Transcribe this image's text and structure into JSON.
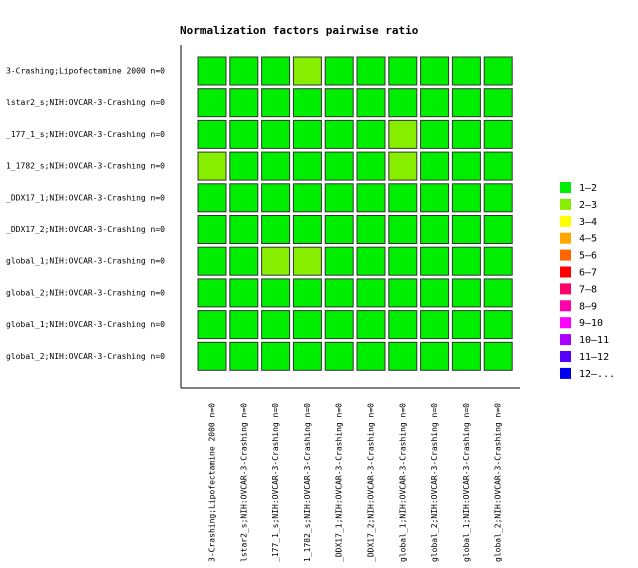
{
  "chart_data": {
    "type": "heatmap",
    "title": "Normalization factors pairwise ratio",
    "rows": [
      "3-Crashing;Lipofectamine 2000 n=0",
      "lstar2_s;NIH:OVCAR-3-Crashing n=0",
      "_177_1_s;NIH:OVCAR-3-Crashing n=0",
      "1_1782_s;NIH:OVCAR-3-Crashing n=0",
      "_DDX17_1;NIH:OVCAR-3-Crashing n=0",
      "_DDX17_2;NIH:OVCAR-3-Crashing n=0",
      "global_1;NIH:OVCAR-3-Crashing n=0",
      "global_2;NIH:OVCAR-3-Crashing n=0",
      "global_1;NIH:OVCAR-3-Crashing n=0",
      "global_2;NIH:OVCAR-3-Crashing n=0"
    ],
    "columns": [
      "3-Crashing;Lipofectamine 2000 n=0",
      "lstar2_s;NIH:OVCAR-3-Crashing n=0",
      "_177_1_s;NIH:OVCAR-3-Crashing n=0",
      "1_1782_s;NIH:OVCAR-3-Crashing n=0",
      "_DDX17_1;NIH:OVCAR-3-Crashing n=0",
      "_DDX17_2;NIH:OVCAR-3-Crashing n=0",
      "global_1;NIH:OVCAR-3-Crashing n=0",
      "global_2;NIH:OVCAR-3-Crashing n=0",
      "global_1;NIH:OVCAR-3-Crashing n=0",
      "global_2;NIH:OVCAR-3-Crashing n=0"
    ],
    "values": [
      [
        1.5,
        1.5,
        1.5,
        2.5,
        1.5,
        1.5,
        1.5,
        1.5,
        1.5,
        1.5
      ],
      [
        1.5,
        1.5,
        1.5,
        1.5,
        1.5,
        1.5,
        1.5,
        1.5,
        1.5,
        1.5
      ],
      [
        1.5,
        1.5,
        1.5,
        1.5,
        1.5,
        1.5,
        2.5,
        1.5,
        1.5,
        1.5
      ],
      [
        2.5,
        1.5,
        1.5,
        1.5,
        1.5,
        1.5,
        2.5,
        1.5,
        1.5,
        1.5
      ],
      [
        1.5,
        1.5,
        1.5,
        1.5,
        1.5,
        1.5,
        1.5,
        1.5,
        1.5,
        1.5
      ],
      [
        1.5,
        1.5,
        1.5,
        1.5,
        1.5,
        1.5,
        1.5,
        1.5,
        1.5,
        1.5
      ],
      [
        1.5,
        1.5,
        2.5,
        2.5,
        1.5,
        1.5,
        1.5,
        1.5,
        1.5,
        1.5
      ],
      [
        1.5,
        1.5,
        1.5,
        1.5,
        1.5,
        1.5,
        1.5,
        1.5,
        1.5,
        1.5
      ],
      [
        1.5,
        1.5,
        1.5,
        1.5,
        1.5,
        1.5,
        1.5,
        1.5,
        1.5,
        1.5
      ],
      [
        1.5,
        1.5,
        1.5,
        1.5,
        1.5,
        1.5,
        1.5,
        1.5,
        1.5,
        1.5
      ]
    ],
    "legend": [
      {
        "label": "1–2",
        "color": "#00ee00"
      },
      {
        "label": "2–3",
        "color": "#88ee00"
      },
      {
        "label": "3–4",
        "color": "#ffff00"
      },
      {
        "label": "4–5",
        "color": "#ffa500"
      },
      {
        "label": "5–6",
        "color": "#ff6600"
      },
      {
        "label": "6–7",
        "color": "#ff0000"
      },
      {
        "label": "7–8",
        "color": "#ff0066"
      },
      {
        "label": "8–9",
        "color": "#ff00aa"
      },
      {
        "label": "9–10",
        "color": "#ff00ff"
      },
      {
        "label": "10–11",
        "color": "#aa00ff"
      },
      {
        "label": "11–12",
        "color": "#5500ff"
      },
      {
        "label": "12–...",
        "color": "#0000ee"
      }
    ]
  }
}
